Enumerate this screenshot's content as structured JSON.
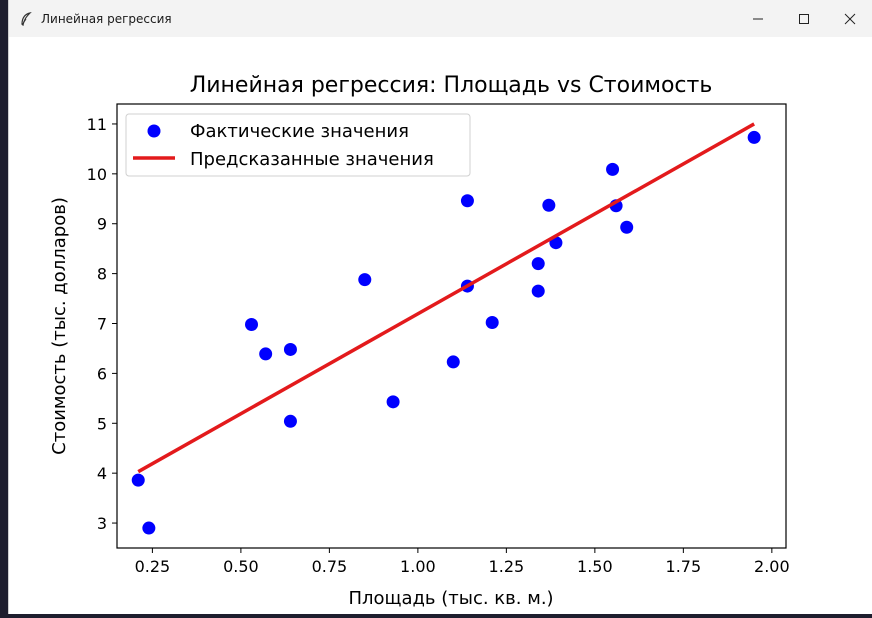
{
  "window": {
    "title": "Линейная регрессия",
    "icon": "feather-icon"
  },
  "chart_data": {
    "type": "scatter",
    "title": "Линейная регрессия: Площадь vs Стоимость",
    "xlabel": "Площадь (тыс. кв. м.)",
    "ylabel": "Стоимость (тыс. долларов)",
    "xlim": [
      0.15,
      2.04
    ],
    "ylim": [
      2.5,
      11.4
    ],
    "xticks": [
      0.25,
      0.5,
      0.75,
      1.0,
      1.25,
      1.5,
      1.75,
      2.0
    ],
    "xtick_labels": [
      "0.25",
      "0.50",
      "0.75",
      "1.00",
      "1.25",
      "1.50",
      "1.75",
      "2.00"
    ],
    "yticks": [
      3,
      4,
      5,
      6,
      7,
      8,
      9,
      10,
      11
    ],
    "ytick_labels": [
      "3",
      "4",
      "5",
      "6",
      "7",
      "8",
      "9",
      "10",
      "11"
    ],
    "grid": false,
    "legend_position": "top-left",
    "series": [
      {
        "name": "Фактические значения",
        "kind": "scatter",
        "color": "#0000ff",
        "points": [
          [
            0.21,
            3.86
          ],
          [
            0.24,
            2.9
          ],
          [
            0.53,
            6.98
          ],
          [
            0.57,
            6.39
          ],
          [
            0.64,
            6.48
          ],
          [
            0.64,
            5.04
          ],
          [
            0.85,
            7.88
          ],
          [
            0.93,
            5.43
          ],
          [
            1.1,
            6.23
          ],
          [
            1.14,
            9.46
          ],
          [
            1.14,
            7.75
          ],
          [
            1.21,
            7.02
          ],
          [
            1.34,
            7.65
          ],
          [
            1.34,
            8.2
          ],
          [
            1.37,
            9.37
          ],
          [
            1.39,
            8.62
          ],
          [
            1.55,
            10.09
          ],
          [
            1.56,
            9.36
          ],
          [
            1.59,
            8.93
          ],
          [
            1.95,
            10.73
          ]
        ]
      },
      {
        "name": "Предсказанные значения",
        "kind": "line",
        "color": "#e31a1c",
        "points": [
          [
            0.21,
            4.03
          ],
          [
            1.95,
            11.0
          ]
        ]
      }
    ]
  }
}
